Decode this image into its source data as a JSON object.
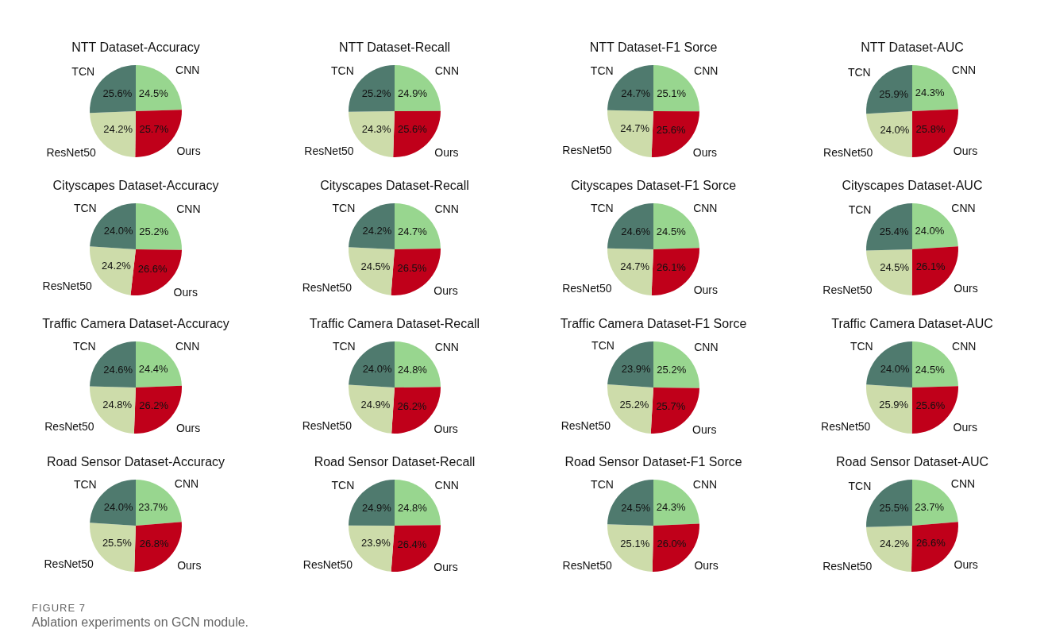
{
  "chart_data": [
    {
      "type": "pie",
      "title": "NTT Dataset-Accuracy",
      "categories": [
        "CNN",
        "Ours",
        "ResNet50",
        "TCN"
      ],
      "values": [
        24.5,
        25.7,
        24.2,
        25.6
      ],
      "value_labels": [
        "24.5%",
        "25.7%",
        "24.2%",
        "25.6%"
      ],
      "colors": [
        "#98d68f",
        "#c0001a",
        "#cddcaa",
        "#4f7a6e"
      ]
    },
    {
      "type": "pie",
      "title": "NTT Dataset-Recall",
      "categories": [
        "CNN",
        "Ours",
        "ResNet50",
        "TCN"
      ],
      "values": [
        24.9,
        25.6,
        24.3,
        25.2
      ],
      "value_labels": [
        "24.9%",
        "25.6%",
        "24.3%",
        "25.2%"
      ],
      "colors": [
        "#98d68f",
        "#c0001a",
        "#cddcaa",
        "#4f7a6e"
      ]
    },
    {
      "type": "pie",
      "title": "NTT Dataset-F1 Sorce",
      "categories": [
        "CNN",
        "Ours",
        "ResNet50",
        "TCN"
      ],
      "values": [
        25.1,
        25.6,
        24.7,
        24.7
      ],
      "value_labels": [
        "25.1%",
        "25.6%",
        "24.7%",
        "24.7%"
      ],
      "colors": [
        "#98d68f",
        "#c0001a",
        "#cddcaa",
        "#4f7a6e"
      ]
    },
    {
      "type": "pie",
      "title": "NTT Dataset-AUC",
      "categories": [
        "CNN",
        "Ours",
        "ResNet50",
        "TCN"
      ],
      "values": [
        24.3,
        25.8,
        24.0,
        25.9
      ],
      "value_labels": [
        "24.3%",
        "25.8%",
        "24.0%",
        "25.9%"
      ],
      "colors": [
        "#98d68f",
        "#c0001a",
        "#cddcaa",
        "#4f7a6e"
      ]
    },
    {
      "type": "pie",
      "title": "Cityscapes Dataset-Accuracy",
      "categories": [
        "CNN",
        "Ours",
        "ResNet50",
        "TCN"
      ],
      "values": [
        25.2,
        26.6,
        24.2,
        24.0
      ],
      "value_labels": [
        "25.2%",
        "26.6%",
        "24.2%",
        "24.0%"
      ],
      "colors": [
        "#98d68f",
        "#c0001a",
        "#cddcaa",
        "#4f7a6e"
      ]
    },
    {
      "type": "pie",
      "title": "Cityscapes Dataset-Recall",
      "categories": [
        "CNN",
        "Ours",
        "ResNet50",
        "TCN"
      ],
      "values": [
        24.7,
        26.5,
        24.5,
        24.2
      ],
      "value_labels": [
        "24.7%",
        "26.5%",
        "24.5%",
        "24.2%"
      ],
      "colors": [
        "#98d68f",
        "#c0001a",
        "#cddcaa",
        "#4f7a6e"
      ]
    },
    {
      "type": "pie",
      "title": "Cityscapes Dataset-F1 Sorce",
      "categories": [
        "CNN",
        "Ours",
        "ResNet50",
        "TCN"
      ],
      "values": [
        24.5,
        26.1,
        24.7,
        24.6
      ],
      "value_labels": [
        "24.5%",
        "26.1%",
        "24.7%",
        "24.6%"
      ],
      "colors": [
        "#98d68f",
        "#c0001a",
        "#cddcaa",
        "#4f7a6e"
      ]
    },
    {
      "type": "pie",
      "title": "Cityscapes Dataset-AUC",
      "categories": [
        "CNN",
        "Ours",
        "ResNet50",
        "TCN"
      ],
      "values": [
        24.0,
        26.1,
        24.5,
        25.4
      ],
      "value_labels": [
        "24.0%",
        "26.1%",
        "24.5%",
        "25.4%"
      ],
      "colors": [
        "#98d68f",
        "#c0001a",
        "#cddcaa",
        "#4f7a6e"
      ]
    },
    {
      "type": "pie",
      "title": "Traffic Camera Dataset-Accuracy",
      "categories": [
        "CNN",
        "Ours",
        "ResNet50",
        "TCN"
      ],
      "values": [
        24.4,
        26.2,
        24.8,
        24.6
      ],
      "value_labels": [
        "24.4%",
        "26.2%",
        "24.8%",
        "24.6%"
      ],
      "colors": [
        "#98d68f",
        "#c0001a",
        "#cddcaa",
        "#4f7a6e"
      ]
    },
    {
      "type": "pie",
      "title": "Traffic Camera Dataset-Recall",
      "categories": [
        "CNN",
        "Ours",
        "ResNet50",
        "TCN"
      ],
      "values": [
        24.8,
        26.2,
        24.9,
        24.0
      ],
      "value_labels": [
        "24.8%",
        "26.2%",
        "24.9%",
        "24.0%"
      ],
      "colors": [
        "#98d68f",
        "#c0001a",
        "#cddcaa",
        "#4f7a6e"
      ]
    },
    {
      "type": "pie",
      "title": "Traffic Camera Dataset-F1 Sorce",
      "categories": [
        "CNN",
        "Ours",
        "ResNet50",
        "TCN"
      ],
      "values": [
        25.2,
        25.7,
        25.2,
        23.9
      ],
      "value_labels": [
        "25.2%",
        "25.7%",
        "25.2%",
        "23.9%"
      ],
      "colors": [
        "#98d68f",
        "#c0001a",
        "#cddcaa",
        "#4f7a6e"
      ]
    },
    {
      "type": "pie",
      "title": "Traffic Camera Dataset-AUC",
      "categories": [
        "CNN",
        "Ours",
        "ResNet50",
        "TCN"
      ],
      "values": [
        24.5,
        25.6,
        25.9,
        24.0
      ],
      "value_labels": [
        "24.5%",
        "25.6%",
        "25.9%",
        "24.0%"
      ],
      "colors": [
        "#98d68f",
        "#c0001a",
        "#cddcaa",
        "#4f7a6e"
      ]
    },
    {
      "type": "pie",
      "title": "Road Sensor Dataset-Accuracy",
      "categories": [
        "CNN",
        "Ours",
        "ResNet50",
        "TCN"
      ],
      "values": [
        23.7,
        26.8,
        25.5,
        24.0
      ],
      "value_labels": [
        "23.7%",
        "26.8%",
        "25.5%",
        "24.0%"
      ],
      "colors": [
        "#98d68f",
        "#c0001a",
        "#cddcaa",
        "#4f7a6e"
      ]
    },
    {
      "type": "pie",
      "title": "Road Sensor Dataset-Recall",
      "categories": [
        "CNN",
        "Ours",
        "ResNet50",
        "TCN"
      ],
      "values": [
        24.8,
        26.4,
        23.9,
        24.9
      ],
      "value_labels": [
        "24.8%",
        "26.4%",
        "23.9%",
        "24.9%"
      ],
      "colors": [
        "#98d68f",
        "#c0001a",
        "#cddcaa",
        "#4f7a6e"
      ]
    },
    {
      "type": "pie",
      "title": "Road Sensor Dataset-F1 Sorce",
      "categories": [
        "CNN",
        "Ours",
        "ResNet50",
        "TCN"
      ],
      "values": [
        24.3,
        26.0,
        25.1,
        24.5
      ],
      "value_labels": [
        "24.3%",
        "26.0%",
        "25.1%",
        "24.5%"
      ],
      "colors": [
        "#98d68f",
        "#c0001a",
        "#cddcaa",
        "#4f7a6e"
      ]
    },
    {
      "type": "pie",
      "title": "Road Sensor Dataset-AUC",
      "categories": [
        "CNN",
        "Ours",
        "ResNet50",
        "TCN"
      ],
      "values": [
        23.7,
        26.6,
        24.2,
        25.5
      ],
      "value_labels": [
        "23.7%",
        "26.6%",
        "24.2%",
        "25.5%"
      ],
      "colors": [
        "#98d68f",
        "#c0001a",
        "#cddcaa",
        "#4f7a6e"
      ],
      "annotations": [
        "FIGURE 7",
        "Ablation experiments on GCN module."
      ]
    }
  ]
}
